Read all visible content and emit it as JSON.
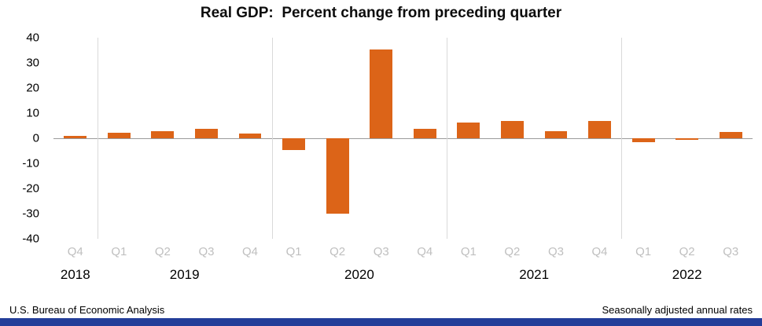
{
  "title": "Real GDP:  Percent change from preceding quarter",
  "footer": {
    "left": "U.S. Bureau of Economic Analysis",
    "right": "Seasonally adjusted annual rates"
  },
  "colors": {
    "bar": "#DC6418",
    "quarter_label": "#bfbfbf",
    "year_label": "#000000",
    "zero_line": "#9b9b9b",
    "year_separator": "#d9d9d9",
    "footer_accent": "#233E99"
  },
  "chart_data": {
    "type": "bar",
    "title": "Real GDP:  Percent change from preceding quarter",
    "xlabel": "",
    "ylabel": "Percent change",
    "ylim": [
      -40,
      40
    ],
    "yticks": [
      40,
      30,
      20,
      10,
      0,
      -10,
      -20,
      -30,
      -40
    ],
    "grid": "vertical-year-separators-only",
    "legend": "none",
    "bar_color": "#DC6418",
    "groups": [
      {
        "year": "2018",
        "quarters": [
          "Q4"
        ],
        "values": [
          0.9
        ]
      },
      {
        "year": "2019",
        "quarters": [
          "Q1",
          "Q2",
          "Q3",
          "Q4"
        ],
        "values": [
          2.2,
          2.7,
          3.6,
          1.8
        ]
      },
      {
        "year": "2020",
        "quarters": [
          "Q1",
          "Q2",
          "Q3",
          "Q4"
        ],
        "values": [
          -4.6,
          -29.9,
          35.3,
          3.9
        ]
      },
      {
        "year": "2021",
        "quarters": [
          "Q1",
          "Q2",
          "Q3",
          "Q4"
        ],
        "values": [
          6.3,
          7.0,
          2.7,
          7.0
        ]
      },
      {
        "year": "2022",
        "quarters": [
          "Q1",
          "Q2",
          "Q3"
        ],
        "values": [
          -1.6,
          -0.6,
          2.6
        ]
      }
    ]
  }
}
